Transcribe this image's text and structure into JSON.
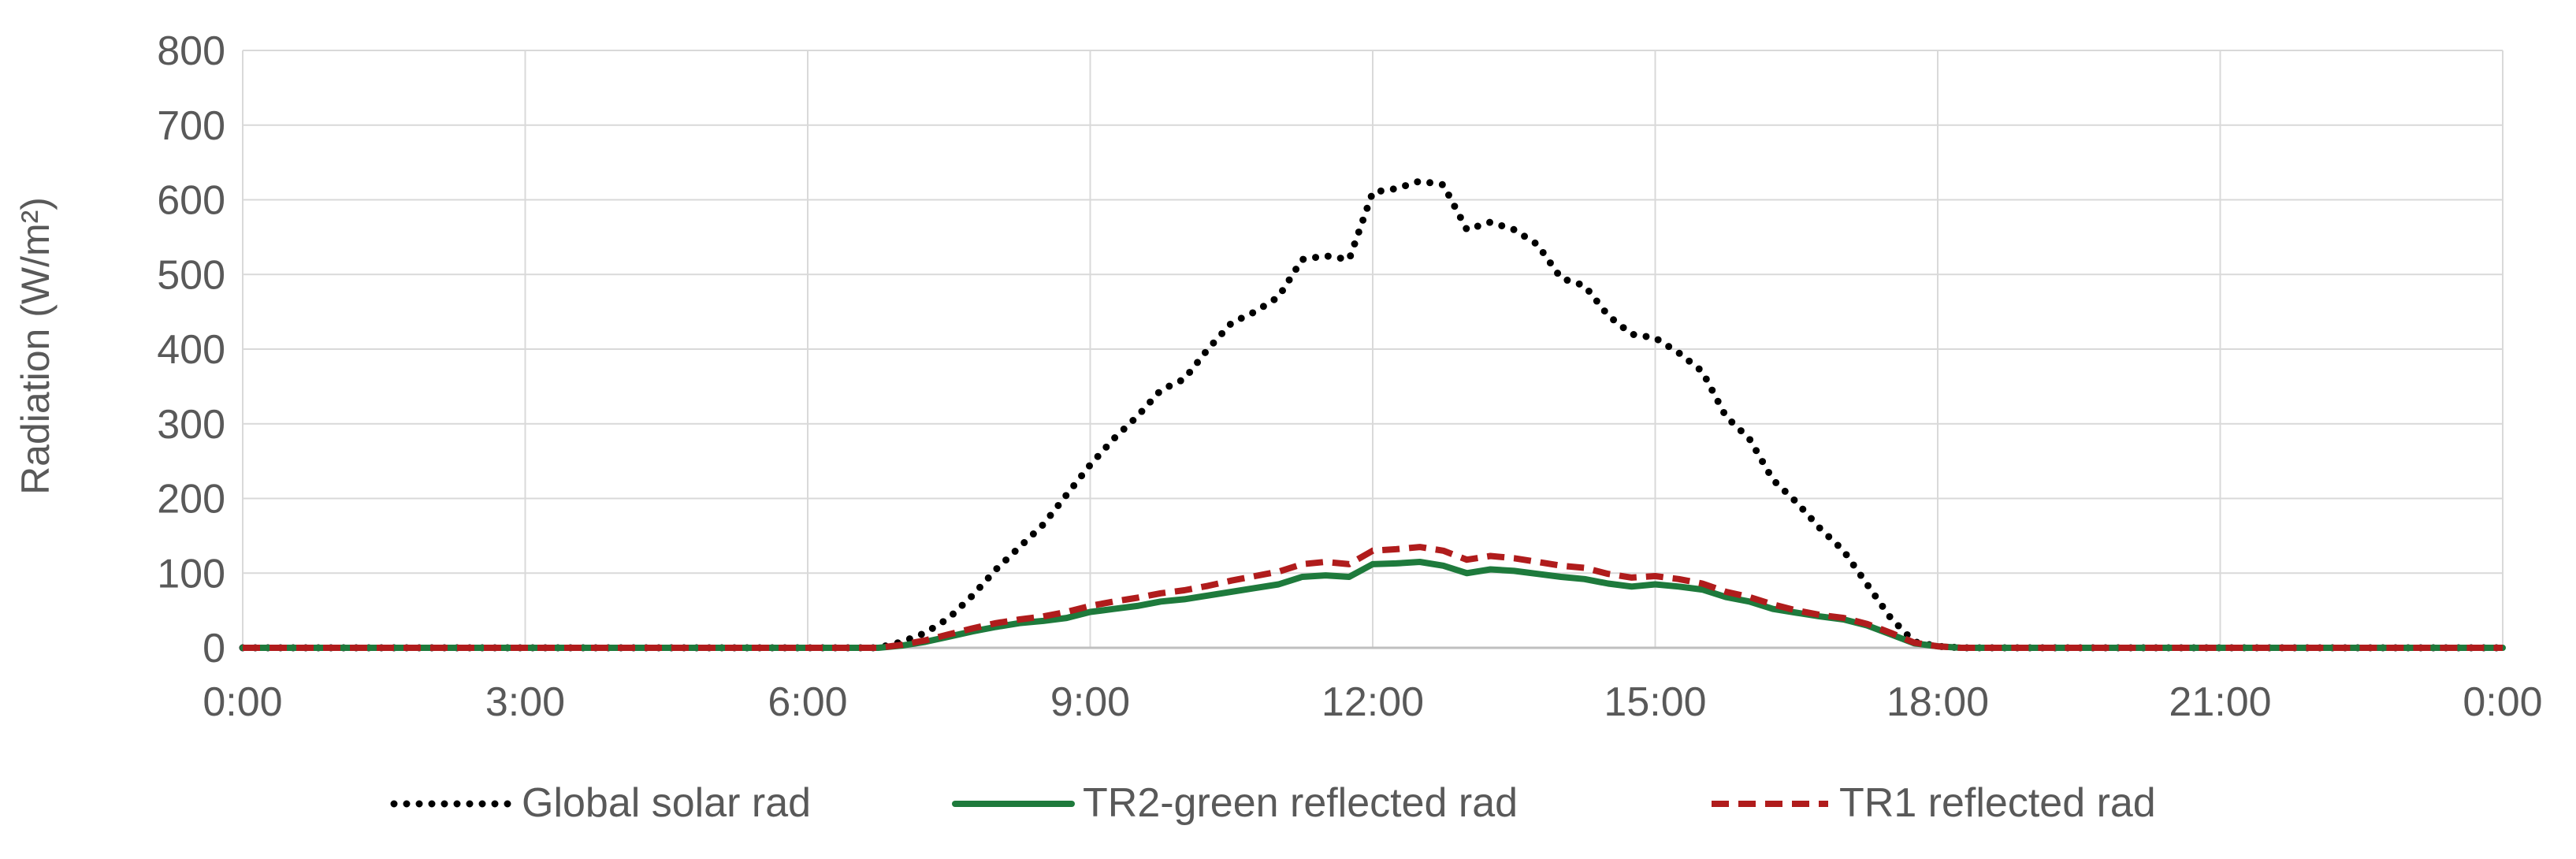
{
  "chart_data": {
    "type": "line",
    "title": "",
    "xlabel": "",
    "ylabel": "Radiation (W/m²)",
    "xlim": [
      0,
      24
    ],
    "ylim": [
      0,
      800
    ],
    "x_tick_labels": [
      "0:00",
      "3:00",
      "6:00",
      "9:00",
      "12:00",
      "15:00",
      "18:00",
      "21:00",
      "0:00"
    ],
    "y_tick_labels": [
      "0",
      "100",
      "200",
      "300",
      "400",
      "500",
      "600",
      "700",
      "800"
    ],
    "grid": true,
    "legend_position": "bottom",
    "x_unit": "hour of day",
    "series": [
      {
        "name": "Global solar rad",
        "color": "#000000",
        "style": "dotted",
        "x": [
          0,
          4.5,
          6.75,
          7,
          7.25,
          7.5,
          7.75,
          8,
          8.25,
          8.5,
          8.75,
          9,
          9.25,
          9.5,
          9.75,
          10,
          10.25,
          10.5,
          10.75,
          11,
          11.25,
          11.5,
          11.75,
          12,
          12.25,
          12.5,
          12.75,
          13,
          13.25,
          13.5,
          13.75,
          14,
          14.25,
          14.5,
          14.75,
          15,
          15.25,
          15.5,
          15.75,
          16,
          16.25,
          16.5,
          16.75,
          17,
          17.25,
          17.5,
          17.75,
          18,
          18.25,
          19,
          20,
          21,
          22,
          23,
          24
        ],
        "y": [
          0,
          0,
          0,
          8,
          20,
          40,
          70,
          105,
          135,
          165,
          205,
          245,
          280,
          310,
          345,
          360,
          400,
          435,
          450,
          470,
          520,
          525,
          520,
          610,
          615,
          625,
          620,
          560,
          570,
          560,
          540,
          495,
          485,
          445,
          420,
          415,
          395,
          370,
          310,
          280,
          225,
          195,
          160,
          130,
          85,
          40,
          8,
          2,
          0,
          0,
          0,
          0,
          0,
          0,
          0
        ]
      },
      {
        "name": "TR2-green reflected rad",
        "color": "#1e7a3c",
        "style": "solid",
        "x": [
          0,
          4.5,
          6.75,
          7,
          7.25,
          7.5,
          7.75,
          8,
          8.25,
          8.5,
          8.75,
          9,
          9.25,
          9.5,
          9.75,
          10,
          10.25,
          10.5,
          10.75,
          11,
          11.25,
          11.5,
          11.75,
          12,
          12.25,
          12.5,
          12.75,
          13,
          13.25,
          13.5,
          13.75,
          14,
          14.25,
          14.5,
          14.75,
          15,
          15.25,
          15.5,
          15.75,
          16,
          16.25,
          16.5,
          16.75,
          17,
          17.25,
          17.5,
          17.75,
          18,
          18.25,
          19,
          20,
          21,
          22,
          23,
          24
        ],
        "y": [
          0,
          0,
          0,
          3,
          8,
          15,
          22,
          28,
          33,
          36,
          40,
          48,
          52,
          56,
          62,
          65,
          70,
          75,
          80,
          85,
          95,
          97,
          95,
          112,
          113,
          115,
          110,
          100,
          105,
          103,
          99,
          95,
          92,
          86,
          82,
          85,
          82,
          78,
          68,
          62,
          52,
          47,
          42,
          38,
          30,
          18,
          6,
          2,
          0,
          0,
          0,
          0,
          0,
          0,
          0
        ]
      },
      {
        "name": "TR1 reflected rad",
        "color": "#b01c1c",
        "style": "dashed",
        "x": [
          0,
          4.5,
          6.75,
          7,
          7.25,
          7.5,
          7.75,
          8,
          8.25,
          8.5,
          8.75,
          9,
          9.25,
          9.5,
          9.75,
          10,
          10.25,
          10.5,
          10.75,
          11,
          11.25,
          11.5,
          11.75,
          12,
          12.25,
          12.5,
          12.75,
          13,
          13.25,
          13.5,
          13.75,
          14,
          14.25,
          14.5,
          14.75,
          15,
          15.25,
          15.5,
          15.75,
          16,
          16.25,
          16.5,
          16.75,
          17,
          17.25,
          17.5,
          17.75,
          18,
          18.25,
          19,
          20,
          21,
          22,
          23,
          24
        ],
        "y": [
          0,
          0,
          0,
          4,
          10,
          18,
          26,
          33,
          38,
          42,
          48,
          56,
          62,
          67,
          73,
          77,
          83,
          90,
          96,
          102,
          112,
          115,
          112,
          130,
          132,
          135,
          130,
          118,
          123,
          120,
          115,
          110,
          107,
          99,
          94,
          96,
          92,
          86,
          75,
          68,
          58,
          50,
          44,
          40,
          32,
          20,
          7,
          2,
          0,
          0,
          0,
          0,
          0,
          0,
          0
        ]
      }
    ]
  }
}
